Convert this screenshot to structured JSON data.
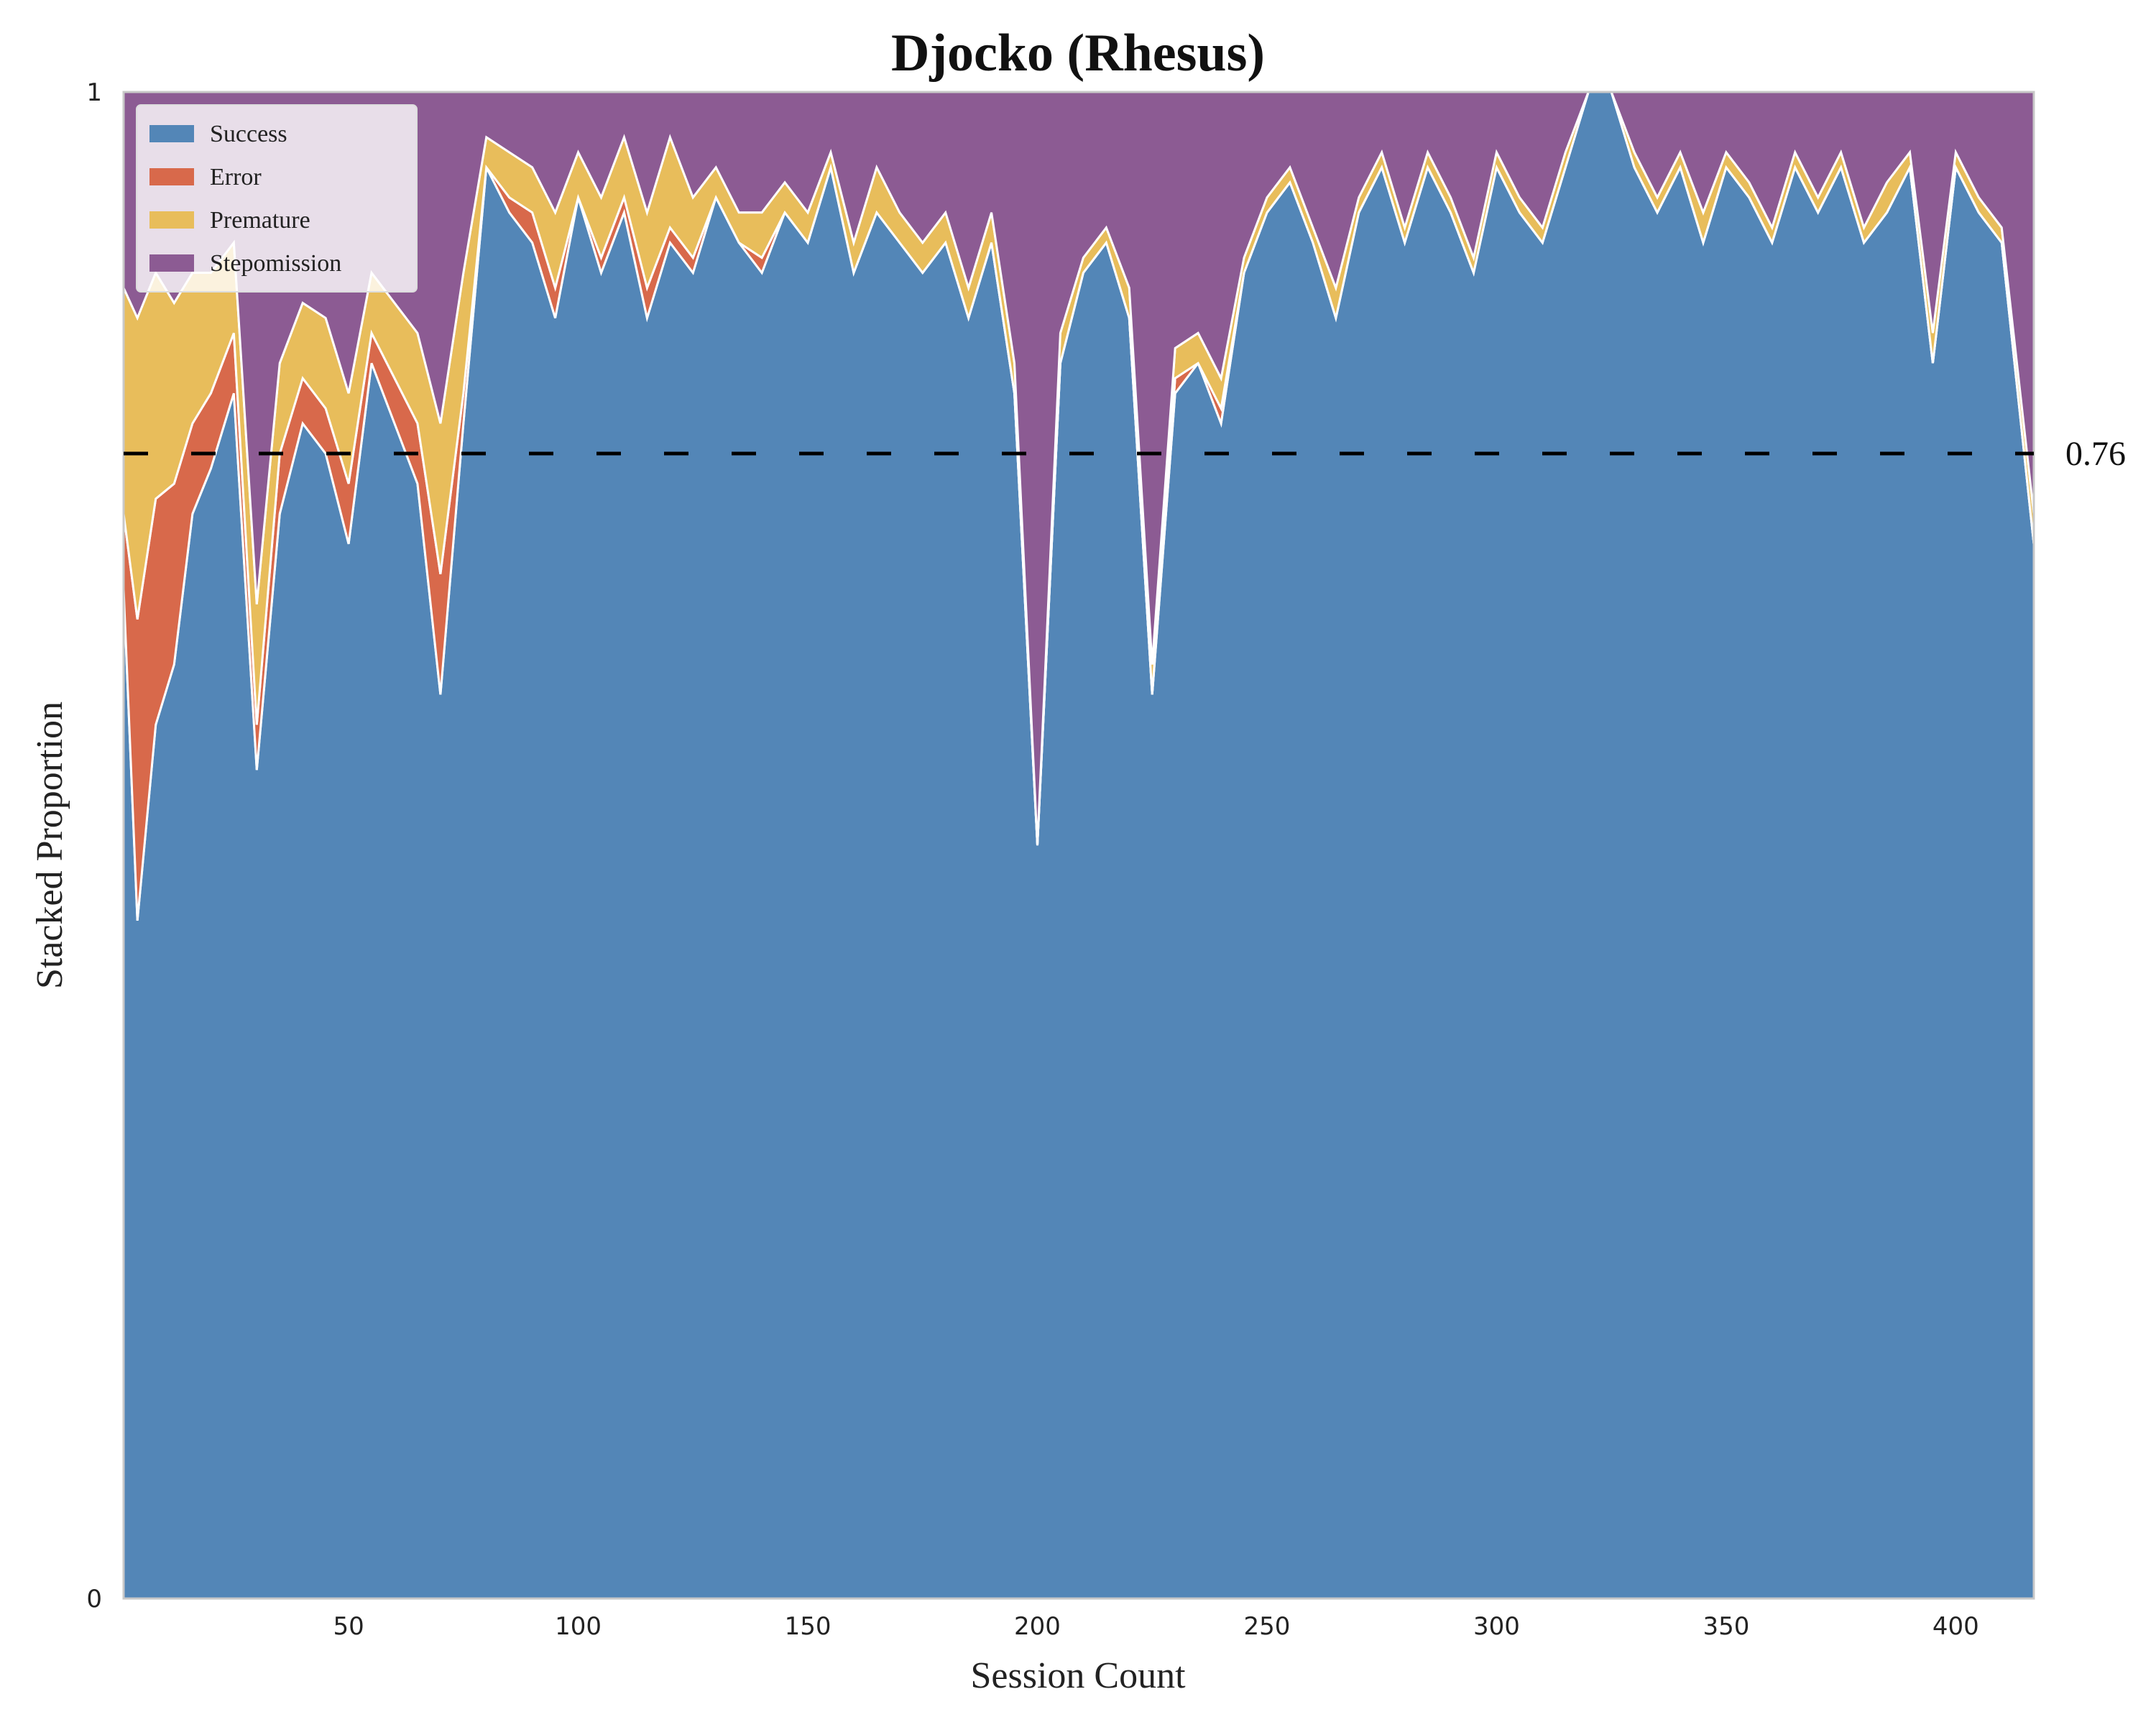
{
  "chart_data": {
    "type": "area",
    "title": "Djocko (Rhesus)",
    "xlabel": "Session Count",
    "ylabel": "Stacked Proportion",
    "xlim": [
      1,
      417
    ],
    "ylim": [
      0,
      1
    ],
    "x_ticks": [
      50,
      100,
      150,
      200,
      250,
      300,
      350,
      400
    ],
    "y_ticks": [
      0,
      1
    ],
    "y_tick_labels": [
      "0",
      "1"
    ],
    "grid": false,
    "legend_position": "upper-left",
    "reference_line": {
      "value": 0.76,
      "label": "0.76",
      "style": "dashed",
      "color": "#000000"
    },
    "series": [
      {
        "name": "Success",
        "color": "#5386b7"
      },
      {
        "name": "Error",
        "color": "#d8694b"
      },
      {
        "name": "Premature",
        "color": "#e8bd5b"
      },
      {
        "name": "Stepomission",
        "color": "#8c5b93"
      }
    ],
    "x": [
      1,
      4,
      8,
      12,
      16,
      20,
      25,
      30,
      35,
      40,
      45,
      50,
      55,
      60,
      65,
      70,
      75,
      80,
      85,
      90,
      95,
      100,
      105,
      110,
      115,
      120,
      125,
      130,
      135,
      140,
      145,
      150,
      155,
      160,
      165,
      170,
      175,
      180,
      185,
      190,
      195,
      200,
      205,
      210,
      215,
      220,
      225,
      230,
      235,
      240,
      245,
      250,
      255,
      260,
      265,
      270,
      275,
      280,
      285,
      290,
      295,
      300,
      305,
      310,
      315,
      320,
      325,
      330,
      335,
      340,
      345,
      350,
      355,
      360,
      365,
      370,
      375,
      380,
      385,
      390,
      395,
      400,
      405,
      410,
      417
    ],
    "values": {
      "Success": [
        0.67,
        0.45,
        0.58,
        0.62,
        0.72,
        0.75,
        0.8,
        0.55,
        0.72,
        0.78,
        0.76,
        0.7,
        0.82,
        0.78,
        0.74,
        0.6,
        0.78,
        0.95,
        0.92,
        0.9,
        0.85,
        0.93,
        0.88,
        0.92,
        0.85,
        0.9,
        0.88,
        0.93,
        0.9,
        0.88,
        0.92,
        0.9,
        0.95,
        0.88,
        0.92,
        0.9,
        0.88,
        0.9,
        0.85,
        0.9,
        0.8,
        0.5,
        0.82,
        0.88,
        0.9,
        0.85,
        0.6,
        0.8,
        0.82,
        0.78,
        0.88,
        0.92,
        0.94,
        0.9,
        0.85,
        0.92,
        0.95,
        0.9,
        0.95,
        0.92,
        0.88,
        0.95,
        0.92,
        0.9,
        0.95,
        1.0,
        1.0,
        0.95,
        0.92,
        0.95,
        0.9,
        0.95,
        0.93,
        0.9,
        0.95,
        0.92,
        0.95,
        0.9,
        0.92,
        0.95,
        0.82,
        0.95,
        0.92,
        0.9,
        0.7
      ],
      "Error": [
        0.05,
        0.2,
        0.15,
        0.12,
        0.06,
        0.05,
        0.04,
        0.03,
        0.04,
        0.03,
        0.03,
        0.04,
        0.02,
        0.03,
        0.04,
        0.08,
        0.02,
        0.0,
        0.01,
        0.02,
        0.02,
        0.0,
        0.01,
        0.01,
        0.02,
        0.01,
        0.01,
        0.0,
        0.0,
        0.01,
        0.0,
        0.0,
        0.0,
        0.0,
        0.0,
        0.0,
        0.0,
        0.0,
        0.0,
        0.0,
        0.0,
        0.0,
        0.0,
        0.0,
        0.0,
        0.0,
        0.0,
        0.01,
        0.0,
        0.01,
        0.0,
        0.0,
        0.0,
        0.0,
        0.0,
        0.0,
        0.0,
        0.0,
        0.0,
        0.0,
        0.0,
        0.0,
        0.0,
        0.0,
        0.0,
        0.0,
        0.0,
        0.0,
        0.0,
        0.0,
        0.0,
        0.0,
        0.0,
        0.0,
        0.0,
        0.0,
        0.0,
        0.0,
        0.0,
        0.0,
        0.0,
        0.0,
        0.0,
        0.0,
        0.0
      ],
      "Premature": [
        0.15,
        0.2,
        0.15,
        0.12,
        0.1,
        0.08,
        0.06,
        0.08,
        0.06,
        0.05,
        0.06,
        0.06,
        0.04,
        0.05,
        0.06,
        0.1,
        0.08,
        0.02,
        0.03,
        0.03,
        0.05,
        0.03,
        0.04,
        0.04,
        0.05,
        0.06,
        0.04,
        0.02,
        0.02,
        0.03,
        0.02,
        0.02,
        0.01,
        0.02,
        0.03,
        0.02,
        0.02,
        0.02,
        0.02,
        0.02,
        0.02,
        0.0,
        0.02,
        0.01,
        0.01,
        0.02,
        0.02,
        0.02,
        0.02,
        0.02,
        0.01,
        0.01,
        0.01,
        0.01,
        0.02,
        0.01,
        0.01,
        0.01,
        0.01,
        0.01,
        0.01,
        0.01,
        0.01,
        0.01,
        0.01,
        0.0,
        0.0,
        0.01,
        0.01,
        0.01,
        0.02,
        0.01,
        0.01,
        0.01,
        0.01,
        0.01,
        0.01,
        0.01,
        0.02,
        0.01,
        0.02,
        0.01,
        0.01,
        0.01,
        0.02
      ],
      "Stepomission": [
        0.13,
        0.15,
        0.12,
        0.14,
        0.12,
        0.12,
        0.1,
        0.34,
        0.18,
        0.14,
        0.15,
        0.2,
        0.12,
        0.14,
        0.16,
        0.22,
        0.12,
        0.03,
        0.04,
        0.05,
        0.08,
        0.04,
        0.07,
        0.03,
        0.08,
        0.03,
        0.07,
        0.05,
        0.08,
        0.08,
        0.06,
        0.08,
        0.04,
        0.1,
        0.05,
        0.08,
        0.1,
        0.08,
        0.13,
        0.08,
        0.18,
        0.5,
        0.16,
        0.11,
        0.09,
        0.13,
        0.38,
        0.17,
        0.16,
        0.19,
        0.11,
        0.07,
        0.05,
        0.09,
        0.13,
        0.07,
        0.04,
        0.09,
        0.04,
        0.07,
        0.11,
        0.04,
        0.07,
        0.09,
        0.04,
        0.0,
        0.0,
        0.04,
        0.07,
        0.04,
        0.08,
        0.04,
        0.06,
        0.09,
        0.04,
        0.07,
        0.04,
        0.09,
        0.06,
        0.04,
        0.16,
        0.04,
        0.07,
        0.09,
        0.28
      ]
    }
  }
}
